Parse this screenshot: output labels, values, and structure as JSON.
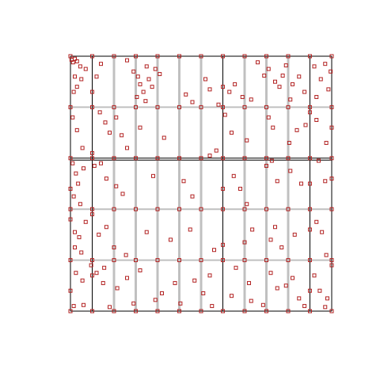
{
  "chart_data": {
    "type": "scatter",
    "title": "",
    "xlabel": "",
    "ylabel": "",
    "xlim": [
      0,
      12
    ],
    "ylim": [
      0,
      5
    ],
    "grid": true,
    "legend": "none",
    "colors": {
      "marker_stroke": "#b22222",
      "background": "#ffffff",
      "grid_light": "#c0c0c0",
      "grid_dark": "#000000"
    },
    "panel_grid": {
      "columns": 12,
      "rows": 5,
      "dark_x": [
        0,
        1,
        7,
        11,
        12
      ],
      "dark_y": [
        0,
        3,
        5
      ],
      "double_y": [
        3
      ]
    },
    "series": [
      {
        "marker": "hollow-square",
        "points": [
          [
            0.05,
            4.93
          ],
          [
            0.12,
            4.88
          ],
          [
            0.2,
            4.95
          ],
          [
            0.3,
            4.9
          ],
          [
            0.45,
            4.8
          ],
          [
            0.2,
            4.6
          ],
          [
            0.3,
            4.4
          ],
          [
            0.15,
            4.3
          ],
          [
            0.5,
            4.55
          ],
          [
            0.7,
            4.75
          ],
          [
            1.2,
            4.6
          ],
          [
            1.4,
            4.85
          ],
          [
            2.6,
            4.92
          ],
          [
            2.9,
            4.7
          ],
          [
            3.1,
            4.6
          ],
          [
            3.2,
            4.45
          ],
          [
            3.35,
            4.3
          ],
          [
            3.5,
            4.8
          ],
          [
            3.6,
            4.55
          ],
          [
            3.75,
            4.4
          ],
          [
            3.45,
            4.12
          ],
          [
            3.9,
            4.75
          ],
          [
            4.1,
            4.65
          ],
          [
            3.05,
            4.2
          ],
          [
            5.3,
            4.25
          ],
          [
            5.6,
            4.1
          ],
          [
            6.2,
            4.55
          ],
          [
            6.4,
            4.35
          ],
          [
            7.3,
            4.3
          ],
          [
            7.55,
            4.45
          ],
          [
            7.9,
            4.2
          ],
          [
            8.6,
            4.88
          ],
          [
            8.9,
            4.62
          ],
          [
            9.1,
            4.75
          ],
          [
            9.4,
            4.5
          ],
          [
            9.6,
            4.4
          ],
          [
            9.75,
            4.62
          ],
          [
            9.9,
            4.82
          ],
          [
            10.2,
            4.45
          ],
          [
            10.5,
            4.6
          ],
          [
            10.75,
            4.3
          ],
          [
            11.2,
            4.8
          ],
          [
            11.5,
            4.55
          ],
          [
            11.7,
            4.85
          ],
          [
            11.85,
            4.35
          ],
          [
            11.95,
            4.7
          ],
          [
            11.3,
            4.2
          ],
          [
            10.1,
            4.15
          ],
          [
            8.3,
            4.15
          ],
          [
            6.8,
            4.05
          ],
          [
            0.1,
            3.8
          ],
          [
            0.3,
            3.55
          ],
          [
            0.55,
            3.2
          ],
          [
            1.35,
            3.9
          ],
          [
            1.6,
            3.7
          ],
          [
            1.8,
            3.5
          ],
          [
            2.1,
            3.8
          ],
          [
            2.35,
            3.45
          ],
          [
            2.6,
            3.2
          ],
          [
            3.2,
            3.6
          ],
          [
            4.3,
            3.4
          ],
          [
            6.4,
            3.05
          ],
          [
            6.7,
            3.15
          ],
          [
            7.1,
            3.85
          ],
          [
            7.4,
            3.5
          ],
          [
            8.1,
            3.35
          ],
          [
            9.1,
            3.8
          ],
          [
            9.3,
            3.6
          ],
          [
            10.05,
            3.3
          ],
          [
            10.4,
            3.55
          ],
          [
            10.8,
            3.65
          ],
          [
            11.3,
            3.75
          ],
          [
            11.75,
            3.3
          ],
          [
            0.1,
            2.9
          ],
          [
            0.25,
            2.7
          ],
          [
            0.35,
            2.5
          ],
          [
            0.15,
            2.25
          ],
          [
            0.45,
            2.1
          ],
          [
            0.6,
            2.8
          ],
          [
            1.1,
            2.85
          ],
          [
            1.4,
            2.9
          ],
          [
            1.65,
            2.6
          ],
          [
            2.1,
            2.45
          ],
          [
            2.4,
            2.3
          ],
          [
            3.8,
            2.65
          ],
          [
            5.2,
            2.55
          ],
          [
            5.6,
            2.25
          ],
          [
            7.5,
            2.65
          ],
          [
            7.8,
            2.4
          ],
          [
            9.0,
            2.85
          ],
          [
            9.25,
            2.95
          ],
          [
            9.5,
            2.55
          ],
          [
            10.1,
            2.75
          ],
          [
            10.6,
            2.5
          ],
          [
            11.4,
            2.95
          ],
          [
            11.7,
            2.55
          ],
          [
            8.1,
            2.1
          ],
          [
            0.2,
            1.55
          ],
          [
            0.4,
            1.45
          ],
          [
            0.5,
            1.15
          ],
          [
            0.2,
            1.25
          ],
          [
            0.7,
            1.75
          ],
          [
            1.3,
            1.5
          ],
          [
            1.65,
            1.65
          ],
          [
            2.0,
            1.25
          ],
          [
            2.55,
            1.1
          ],
          [
            3.5,
            1.55
          ],
          [
            4.6,
            1.4
          ],
          [
            5.5,
            1.6
          ],
          [
            6.6,
            1.2
          ],
          [
            8.0,
            1.35
          ],
          [
            8.35,
            1.6
          ],
          [
            9.2,
            1.4
          ],
          [
            9.4,
            1.65
          ],
          [
            9.7,
            1.25
          ],
          [
            10.3,
            1.5
          ],
          [
            11.3,
            1.75
          ],
          [
            11.55,
            1.55
          ],
          [
            11.75,
            1.1
          ],
          [
            0.25,
            0.75
          ],
          [
            0.55,
            0.6
          ],
          [
            0.95,
            0.9
          ],
          [
            1.2,
            0.75
          ],
          [
            1.55,
            0.85
          ],
          [
            1.5,
            0.55
          ],
          [
            2.15,
            0.45
          ],
          [
            2.6,
            0.65
          ],
          [
            3.2,
            0.8
          ],
          [
            4.2,
            0.35
          ],
          [
            4.8,
            0.55
          ],
          [
            5.7,
            0.6
          ],
          [
            6.1,
            0.35
          ],
          [
            6.4,
            0.7
          ],
          [
            7.4,
            0.3
          ],
          [
            7.6,
            0.85
          ],
          [
            8.2,
            0.55
          ],
          [
            8.3,
            0.2
          ],
          [
            9.2,
            0.75
          ],
          [
            9.5,
            0.45
          ],
          [
            9.9,
            0.5
          ],
          [
            10.2,
            0.65
          ],
          [
            10.5,
            0.25
          ],
          [
            11.2,
            0.7
          ],
          [
            11.45,
            0.4
          ],
          [
            11.8,
            0.25
          ],
          [
            0.15,
            0.1
          ],
          [
            0.6,
            0.12
          ],
          [
            1.8,
            0.08
          ],
          [
            2.9,
            0.15
          ],
          [
            3.9,
            0.22
          ],
          [
            5.05,
            0.15
          ],
          [
            6.5,
            0.1
          ],
          [
            8.85,
            0.12
          ],
          [
            10.75,
            0.1
          ],
          [
            11.7,
            0.08
          ],
          [
            0.0,
            2.4
          ],
          [
            0.0,
            1.8
          ],
          [
            0.0,
            0.4
          ],
          [
            12.0,
            3.6
          ],
          [
            12.0,
            2.6
          ],
          [
            12.0,
            0.9
          ],
          [
            1.0,
            4.3
          ],
          [
            1.0,
            3.1
          ],
          [
            1.0,
            1.9
          ],
          [
            1.0,
            0.7
          ],
          [
            7.0,
            4.4
          ],
          [
            7.0,
            2.4
          ],
          [
            7.0,
            1.3
          ],
          [
            11.0,
            3.9
          ],
          [
            11.0,
            2.5
          ],
          [
            11.0,
            1.6
          ],
          [
            11.0,
            0.4
          ]
        ]
      }
    ]
  }
}
